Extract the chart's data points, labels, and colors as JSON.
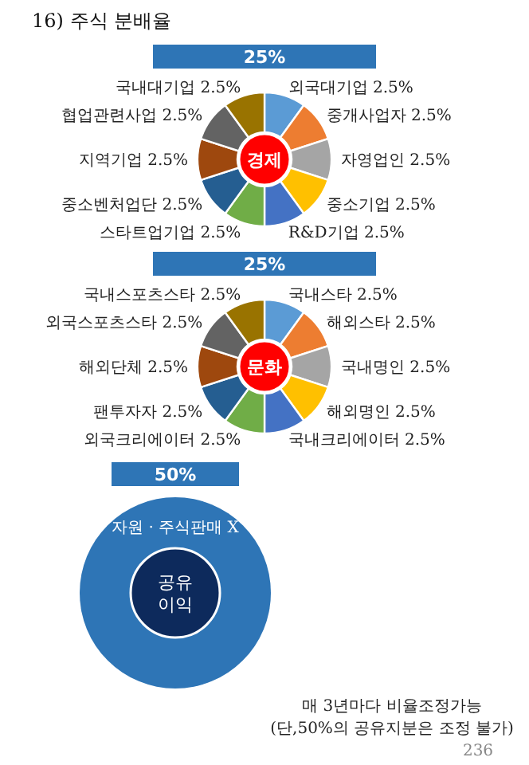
{
  "chart_data": [
    {
      "type": "donut",
      "title": "25%",
      "annotations": [
        "16) 주식 분배율",
        "경제"
      ],
      "categories": [
        "외국대기업",
        "중개사업자",
        "자영업인",
        "중소기업",
        "R&D기업",
        "스타트업기업",
        "중소벤처업단",
        "지역기업",
        "협업관련사업",
        "국내대기업"
      ],
      "values": [
        2.5,
        2.5,
        2.5,
        2.5,
        2.5,
        2.5,
        2.5,
        2.5,
        2.5,
        2.5
      ],
      "value_labels": [
        "2.5%",
        "2.5%",
        "2.5%",
        "2.5%",
        "2.5%",
        "2.5%",
        "2.5%",
        "2.5%",
        "2.5%",
        "2.5%"
      ],
      "colors": [
        "#5b9bd5",
        "#ed7d31",
        "#a5a5a5",
        "#ffc000",
        "#4472c4",
        "#70ad47",
        "#255e91",
        "#9e480e",
        "#636363",
        "#997300"
      ]
    },
    {
      "type": "donut",
      "title": "25%",
      "annotations": [
        "문화"
      ],
      "categories": [
        "국내스타",
        "해외스타",
        "국내명인",
        "해외명인",
        "국내크리에이터",
        "외국크리에이터",
        "팬투자자",
        "해외단체",
        "외국스포츠스타",
        "국내스포츠스타"
      ],
      "values": [
        2.5,
        2.5,
        2.5,
        2.5,
        2.5,
        2.5,
        2.5,
        2.5,
        2.5,
        2.5
      ],
      "value_labels": [
        "2.5%",
        "2.5%",
        "2.5%",
        "2.5%",
        "2.5%",
        "2.5%",
        "2.5%",
        "2.5%",
        "2.5%",
        "2.5%"
      ],
      "colors": [
        "#5b9bd5",
        "#ed7d31",
        "#a5a5a5",
        "#ffc000",
        "#4472c4",
        "#70ad47",
        "#255e91",
        "#9e480e",
        "#636363",
        "#997300"
      ]
    },
    {
      "type": "other",
      "title": "50%",
      "annotations": [
        "자원 · 주식판매 X",
        "공유 이익",
        "매 3년마다 비율조정가능",
        "(단,50%의 공유지분은 조정 불가)",
        "236"
      ]
    }
  ]
}
